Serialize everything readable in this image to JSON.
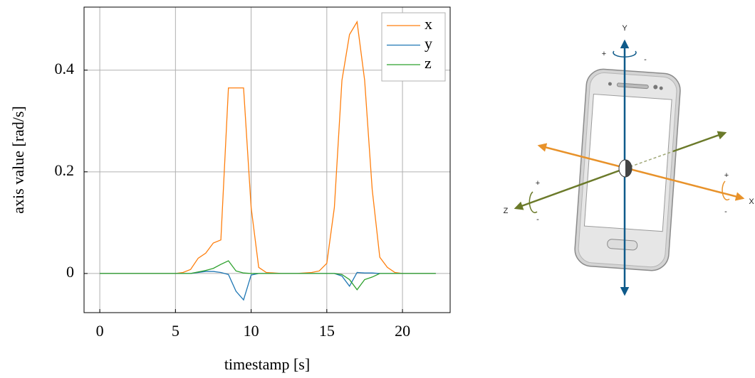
{
  "chart_data": {
    "type": "line",
    "xlabel": "timestamp [s]",
    "ylabel": "axis value [rad/s]",
    "x": [
      0,
      1,
      2,
      3,
      4,
      5,
      5.5,
      6,
      6.5,
      7,
      7.5,
      8,
      8.5,
      9,
      9.5,
      10,
      10.5,
      11,
      12,
      13,
      14,
      14.5,
      15,
      15.5,
      16,
      16.5,
      17,
      17.5,
      18,
      18.5,
      19,
      19.5,
      20,
      21,
      22.2
    ],
    "series": [
      {
        "name": "x",
        "color": "#ff7f0e",
        "values": [
          0,
          0,
          0,
          0,
          0,
          0,
          0.002,
          0.008,
          0.03,
          0.04,
          0.06,
          0.066,
          0.365,
          0.365,
          0.365,
          0.13,
          0.012,
          0.002,
          0,
          0,
          0.002,
          0.005,
          0.02,
          0.13,
          0.38,
          0.47,
          0.495,
          0.38,
          0.165,
          0.032,
          0.012,
          0.002,
          0,
          0,
          0
        ]
      },
      {
        "name": "y",
        "color": "#1f77b4",
        "values": [
          0,
          0,
          0,
          0,
          0,
          0,
          0,
          0,
          0.002,
          0.004,
          0.004,
          0.002,
          -0.002,
          -0.035,
          -0.052,
          -0.003,
          0,
          0,
          0,
          0,
          0,
          0,
          0,
          0,
          -0.005,
          -0.025,
          0.002,
          0.001,
          0.001,
          0,
          0,
          0,
          0,
          0,
          0
        ]
      },
      {
        "name": "z",
        "color": "#2ca02c",
        "values": [
          0,
          0,
          0,
          0,
          0,
          0,
          0,
          0,
          0.003,
          0.006,
          0.01,
          0.018,
          0.025,
          0.005,
          0.001,
          0,
          0,
          0,
          0,
          0,
          0,
          0,
          0,
          0,
          -0.002,
          -0.012,
          -0.032,
          -0.012,
          -0.007,
          0,
          0,
          0,
          0,
          0,
          0
        ]
      }
    ],
    "xlim": [
      -1.04,
      23.15
    ],
    "ylim": [
      -0.077,
      0.524
    ],
    "xticks": [
      0,
      5,
      10,
      15,
      20
    ],
    "yticks": [
      0,
      0.2,
      0.4
    ],
    "grid": true,
    "legend": "upper-right"
  },
  "diagram": {
    "axes": [
      {
        "label": "Y",
        "plus": "+",
        "minus": "-"
      },
      {
        "label": "X",
        "plus": "+",
        "minus": "-"
      },
      {
        "label": "Z",
        "plus": "+",
        "minus": "-"
      }
    ]
  }
}
